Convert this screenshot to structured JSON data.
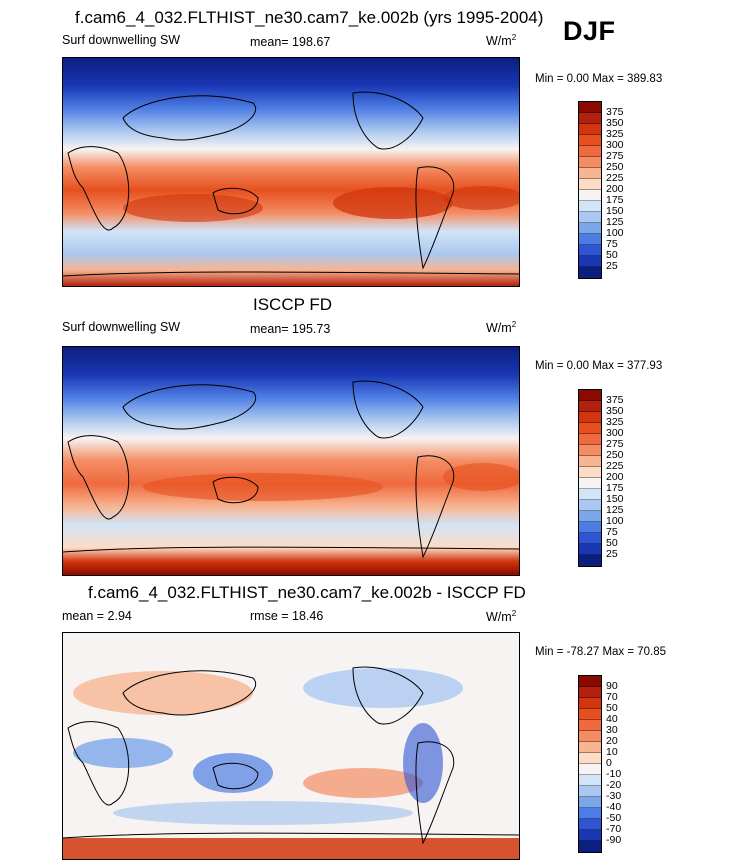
{
  "season": "DJF",
  "panels": [
    {
      "id": "model",
      "title": "f.cam6_4_032.FLTHIST_ne30.cam7_ke.002b (yrs 1995-2004)",
      "left_label": "Surf downwelling SW",
      "center_label": "mean= 198.67",
      "units_prefix": "W/m",
      "units_exp": "2",
      "minmax": "Min =   0.00 Max = 389.83",
      "colorbar_labels": [
        "375",
        "350",
        "325",
        "300",
        "275",
        "250",
        "225",
        "200",
        "175",
        "150",
        "125",
        "100",
        "75",
        "50",
        "25"
      ]
    },
    {
      "id": "obs",
      "title": "ISCCP FD",
      "left_label": "Surf downwelling SW",
      "center_label": "mean= 195.73",
      "units_prefix": "W/m",
      "units_exp": "2",
      "minmax": "Min =   0.00 Max = 377.93",
      "colorbar_labels": [
        "375",
        "350",
        "325",
        "300",
        "275",
        "250",
        "225",
        "200",
        "175",
        "150",
        "125",
        "100",
        "75",
        "50",
        "25"
      ]
    },
    {
      "id": "diff",
      "title": "f.cam6_4_032.FLTHIST_ne30.cam7_ke.002b - ISCCP FD",
      "left_label": "mean =   2.94",
      "center_label": "rmse =  18.46",
      "units_prefix": "W/m",
      "units_exp": "2",
      "minmax": "Min = -78.27 Max =  70.85",
      "colorbar_labels": [
        "90",
        "70",
        "50",
        "40",
        "30",
        "20",
        "10",
        "0",
        "-10",
        "-20",
        "-30",
        "-40",
        "-50",
        "-70",
        "-90"
      ]
    }
  ],
  "colors": {
    "abs_scale": [
      "#8b0a00",
      "#b2200f",
      "#d1360e",
      "#e6501e",
      "#ef6a3e",
      "#f48d64",
      "#f8b592",
      "#fbdcc6",
      "#f7f3f2",
      "#d2e4f7",
      "#aac8f0",
      "#7ba6ea",
      "#4d7de4",
      "#2f55d4",
      "#1936b3",
      "#0c1f7e"
    ],
    "diff_scale": [
      "#8b0a00",
      "#b2200f",
      "#d1360e",
      "#e6501e",
      "#ef6a3e",
      "#f48d64",
      "#f8b592",
      "#fbdcc6",
      "#f7f3f2",
      "#d2e4f7",
      "#aac8f0",
      "#7ba6ea",
      "#4d7de4",
      "#2f55d4",
      "#1936b3",
      "#0c1f7e"
    ]
  }
}
